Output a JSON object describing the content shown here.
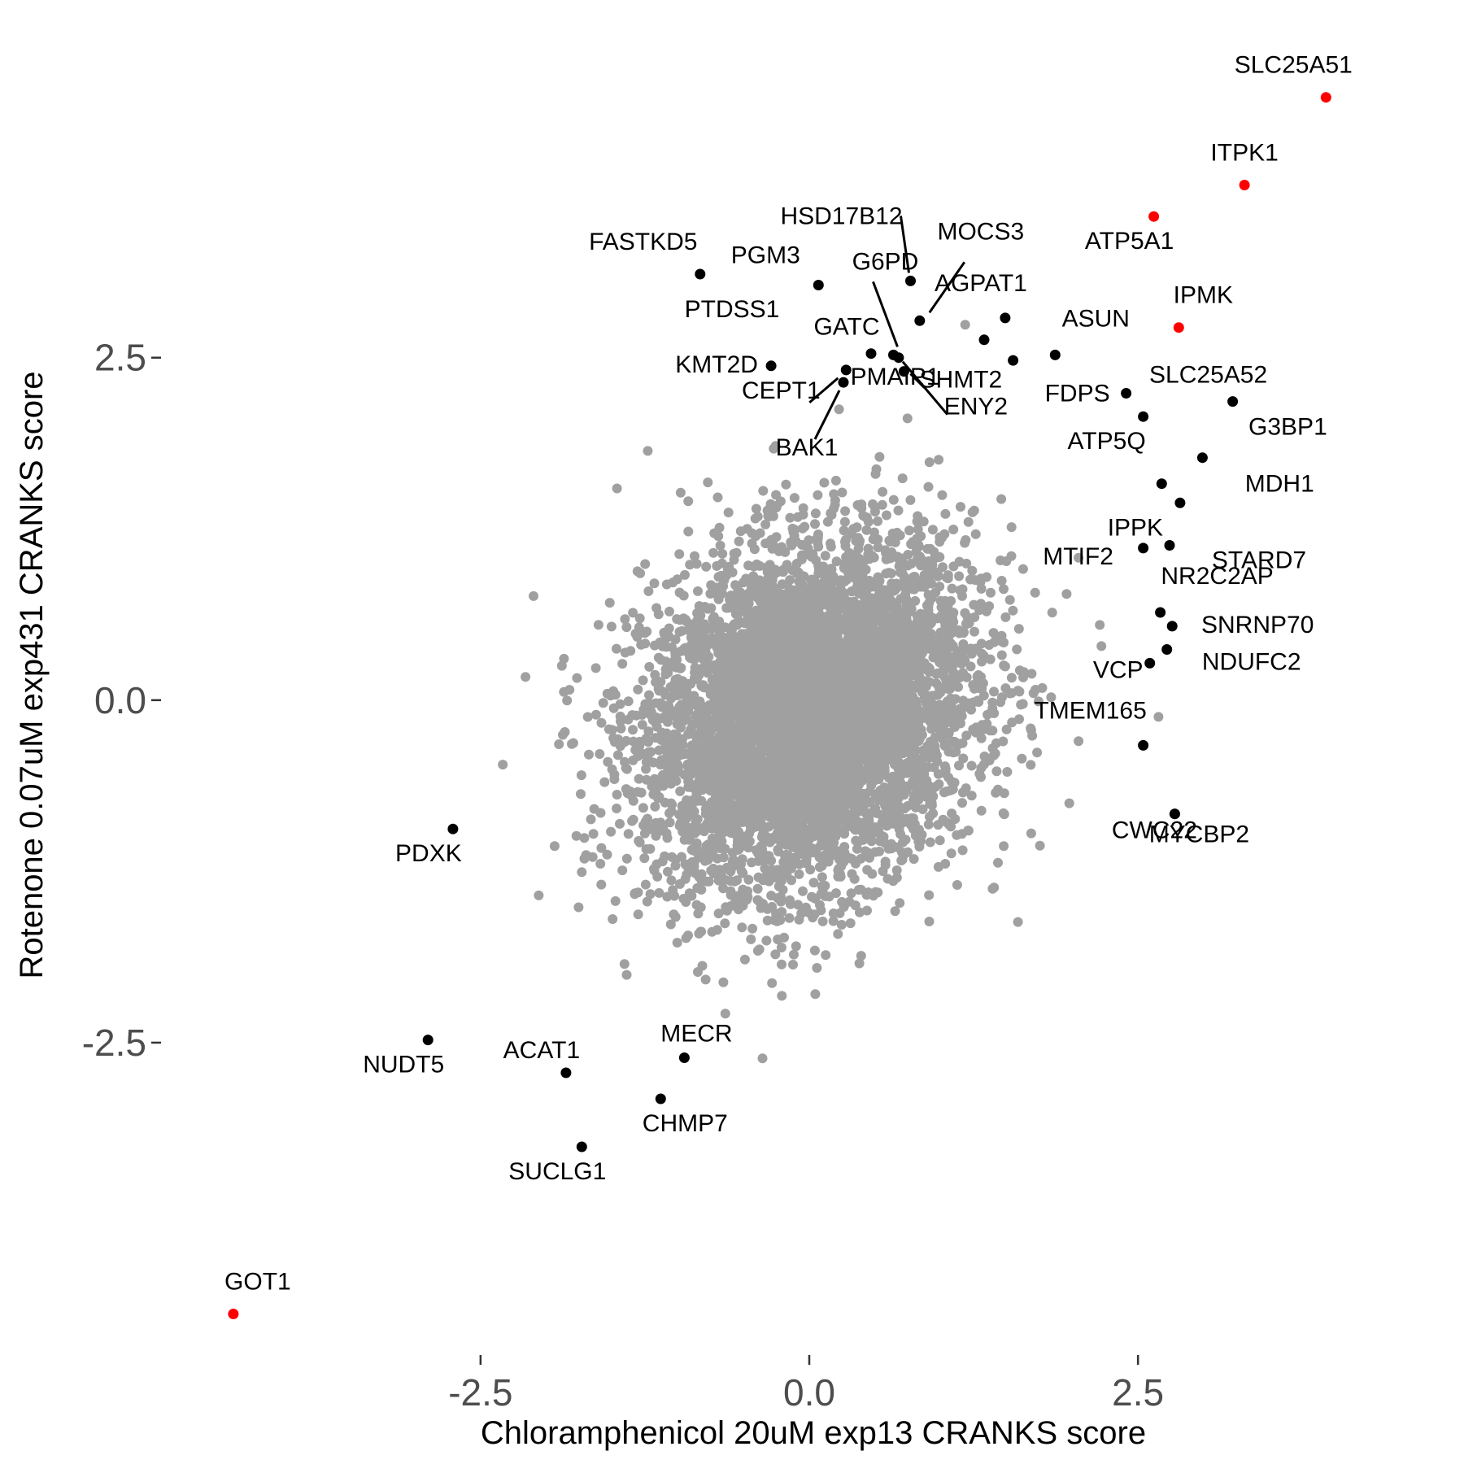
{
  "chart_data": {
    "type": "scatter",
    "xlabel": "Chloramphenicol 20uM exp13 CRANKS score",
    "ylabel": "Rotenone 0.07uM exp431 CRANKS score",
    "xlim": [
      -4.93,
      4.93
    ],
    "ylim": [
      -4.78,
      4.98
    ],
    "x_ticks": [
      -2.5,
      0.0,
      2.5
    ],
    "x_tick_labels": [
      "-2.5",
      "0.0",
      "2.5"
    ],
    "y_ticks": [
      -2.5,
      0.0,
      2.5
    ],
    "y_tick_labels": [
      "-2.5",
      "0.0",
      "2.5"
    ],
    "grid": false,
    "legend": "none",
    "colors": {
      "background_points": "#a0a0a0",
      "labeled_points": "#000000",
      "highlighted_points": "#ff0000"
    },
    "background_series": {
      "description_shown": "dense cloud of unlabeled gene scores",
      "center": [
        0.0,
        -0.1
      ],
      "count": 6000
    },
    "highlighted_points": [
      {
        "label": "SLC25A51",
        "x": 3.93,
        "y": 4.4
      },
      {
        "label": "ITPK1",
        "x": 3.31,
        "y": 3.76
      },
      {
        "label": "ATP5A1",
        "x": 2.62,
        "y": 3.53
      },
      {
        "label": "IPMK",
        "x": 2.81,
        "y": 2.72
      },
      {
        "label": "GOT1",
        "x": -4.38,
        "y": -4.48
      }
    ],
    "labeled_points": [
      {
        "label": "FASTKD5",
        "x": -0.83,
        "y": 3.11
      },
      {
        "label": "PGM3",
        "x": 0.07,
        "y": 3.03
      },
      {
        "label": "HSD17B12",
        "x": 0.77,
        "y": 3.06
      },
      {
        "label": "MOCS3",
        "x": 0.84,
        "y": 2.77
      },
      {
        "label": "AGPAT1",
        "x": 1.49,
        "y": 2.79
      },
      {
        "label": "G6PD",
        "x": 0.64,
        "y": 2.52
      },
      {
        "label": "GATC",
        "x": 0.47,
        "y": 2.53
      },
      {
        "label": "PTDSS1",
        "x": 1.33,
        "y": 2.63
      },
      {
        "label": "KMT2D",
        "x": -0.29,
        "y": 2.44
      },
      {
        "label": "ASUN",
        "x": 1.87,
        "y": 2.52
      },
      {
        "label": "SHMT2",
        "x": 0.72,
        "y": 2.4
      },
      {
        "label": "CEPT1",
        "x": 0.28,
        "y": 2.41
      },
      {
        "label": "PMAIP1",
        "x": 1.55,
        "y": 2.48
      },
      {
        "label": "BAK1",
        "x": 0.26,
        "y": 2.32
      },
      {
        "label": "ENY2",
        "x": 0.68,
        "y": 2.5
      },
      {
        "label": "FDPS",
        "x": 2.41,
        "y": 2.24
      },
      {
        "label": "SLC25A52",
        "x": 3.22,
        "y": 2.18
      },
      {
        "label": "ATP5Q",
        "x": 2.54,
        "y": 2.07
      },
      {
        "label": "G3BP1",
        "x": 2.99,
        "y": 1.77
      },
      {
        "label": "MDH1",
        "x": 2.68,
        "y": 1.58
      },
      {
        "label": "IPPK",
        "x": 2.82,
        "y": 1.44
      },
      {
        "label": "STARD7",
        "x": 2.74,
        "y": 1.13
      },
      {
        "label": "MTIF2",
        "x": 2.54,
        "y": 1.11
      },
      {
        "label": "NR2C2AP",
        "x": 2.67,
        "y": 0.64
      },
      {
        "label": "SNRNP70",
        "x": 2.76,
        "y": 0.54
      },
      {
        "label": "VCP",
        "x": 2.72,
        "y": 0.37
      },
      {
        "label": "NDUFC2",
        "x": 2.59,
        "y": 0.27
      },
      {
        "label": "TMEM165",
        "x": 2.54,
        "y": -0.33
      },
      {
        "label": "CWC22",
        "x": 2.78,
        "y": -0.83
      },
      {
        "label": "MYCBP2",
        "x": 2.78,
        "y": -0.83
      },
      {
        "label": "PDXK",
        "x": -2.71,
        "y": -0.94
      },
      {
        "label": "NUDT5",
        "x": -2.9,
        "y": -2.48
      },
      {
        "label": "ACAT1",
        "x": -1.85,
        "y": -2.72
      },
      {
        "label": "MECR",
        "x": -0.95,
        "y": -2.61
      },
      {
        "label": "CHMP7",
        "x": -1.13,
        "y": -2.91
      },
      {
        "label": "SUCLG1",
        "x": -1.73,
        "y": -3.26
      }
    ]
  }
}
